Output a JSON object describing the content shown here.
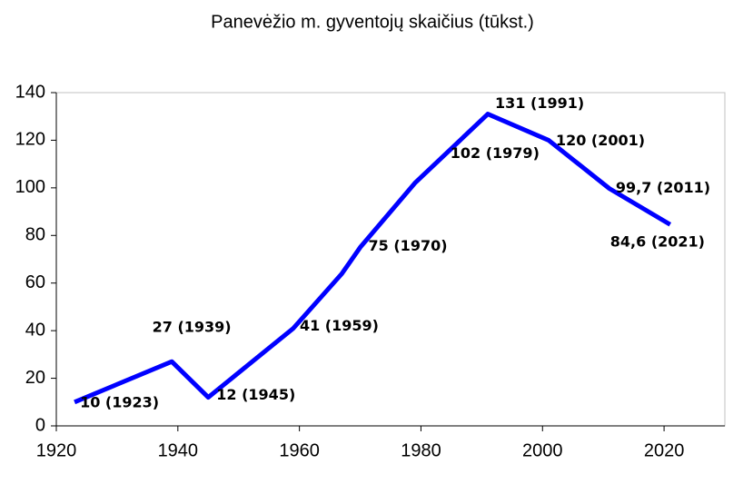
{
  "chart_data": {
    "type": "line",
    "title": "Panevėžio m. gyventojų skaičius (tūkst.)",
    "x": [
      1923,
      1939,
      1945,
      1959,
      1967,
      1970,
      1979,
      1991,
      2001,
      2011,
      2021
    ],
    "series": [
      {
        "color": "#0000ff",
        "values": [
          10,
          27,
          12,
          41,
          64,
          75,
          102,
          131,
          120,
          99.7,
          84.6
        ],
        "value_labels": [
          "10 (1923)",
          "27 (1939)",
          "12 (1945)",
          "41 (1959)",
          null,
          "75 (1970)",
          "102 (1979)",
          "131 (1991)",
          "120 (2001)",
          "99,7 (2011)",
          "84,6 (2021)"
        ]
      }
    ],
    "xlim": [
      1920,
      2030
    ],
    "xticks": [
      1920,
      1940,
      1960,
      1980,
      2000,
      2020
    ],
    "ylim": [
      0,
      140
    ],
    "yticks": [
      0,
      20,
      40,
      60,
      80,
      100,
      120,
      140
    ]
  }
}
